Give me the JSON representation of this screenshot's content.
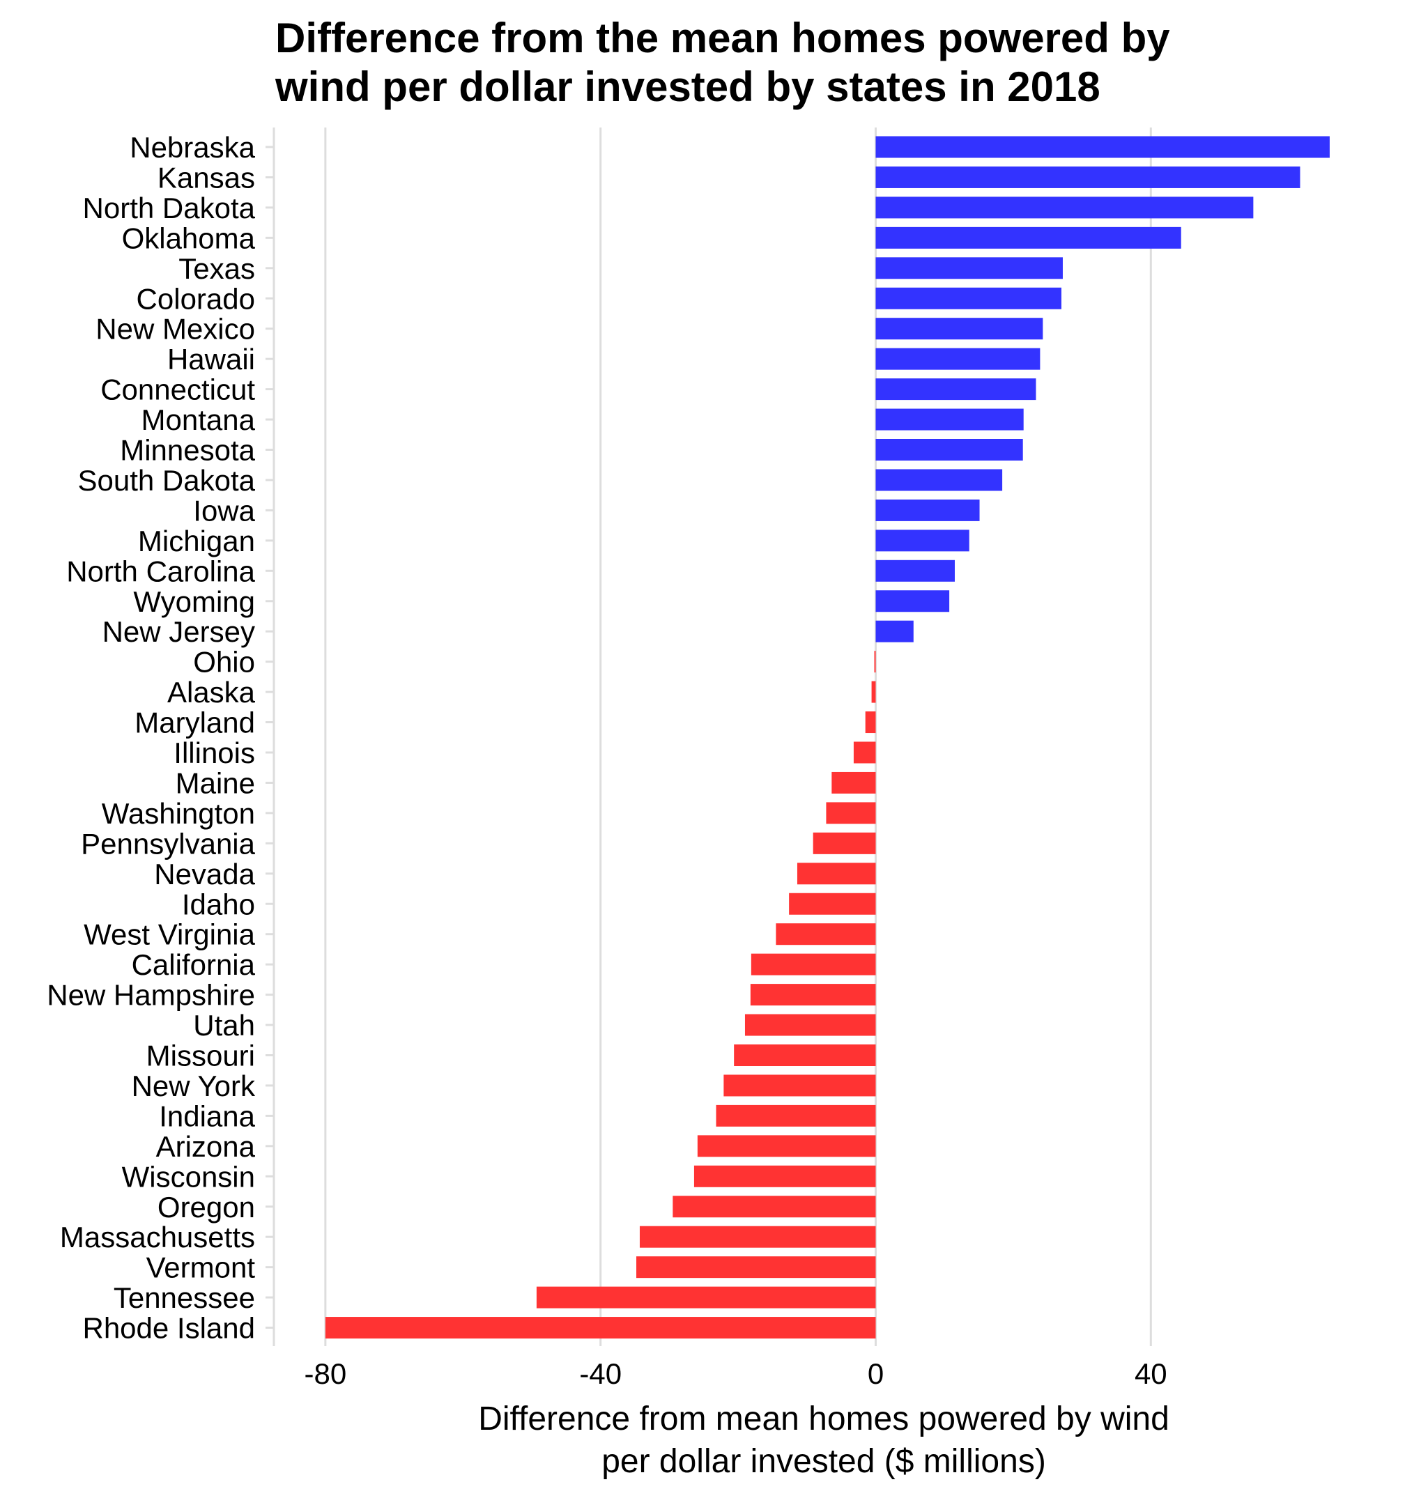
{
  "chart_data": {
    "type": "bar",
    "orientation": "horizontal",
    "title_lines": [
      "Difference from the mean homes powered by",
      "wind per dollar invested by states in 2018"
    ],
    "xlabel_lines": [
      "Difference from mean homes powered by wind",
      "per dollar invested ($ millions)"
    ],
    "ylabel": "",
    "xlim": [
      -87,
      67
    ],
    "xticks": [
      -80,
      -40,
      0,
      40
    ],
    "xtick_labels": [
      "-80",
      "-40",
      "0",
      "40"
    ],
    "grid": "vertical major gridlines",
    "legend": "none",
    "colors": {
      "positive": "#3333ff",
      "negative": "#ff3333",
      "grid": "#dddddd",
      "axis_line": "#dddddd"
    },
    "categories": [
      "Nebraska",
      "Kansas",
      "North Dakota",
      "Oklahoma",
      "Texas",
      "Colorado",
      "New Mexico",
      "Hawaii",
      "Connecticut",
      "Montana",
      "Minnesota",
      "South Dakota",
      "Iowa",
      "Michigan",
      "North Carolina",
      "Wyoming",
      "New Jersey",
      "Ohio",
      "Alaska",
      "Maryland",
      "Illinois",
      "Maine",
      "Washington",
      "Pennsylvania",
      "Nevada",
      "Idaho",
      "West Virginia",
      "California",
      "New Hampshire",
      "Utah",
      "Missouri",
      "New York",
      "Indiana",
      "Arizona",
      "Wisconsin",
      "Oregon",
      "Massachusetts",
      "Vermont",
      "Tennessee",
      "Rhode Island"
    ],
    "values": [
      66,
      61.7,
      54.9,
      44.4,
      27.2,
      27.0,
      24.3,
      23.9,
      23.3,
      21.5,
      21.4,
      18.4,
      15.1,
      13.6,
      11.5,
      10.7,
      5.5,
      -0.2,
      -0.6,
      -1.5,
      -3.2,
      -6.4,
      -7.2,
      -9.1,
      -11.4,
      -12.6,
      -14.5,
      -18.1,
      -18.2,
      -19.0,
      -20.6,
      -22.1,
      -23.2,
      -25.9,
      -26.4,
      -29.5,
      -34.3,
      -34.8,
      -49.3,
      -80.0
    ]
  }
}
